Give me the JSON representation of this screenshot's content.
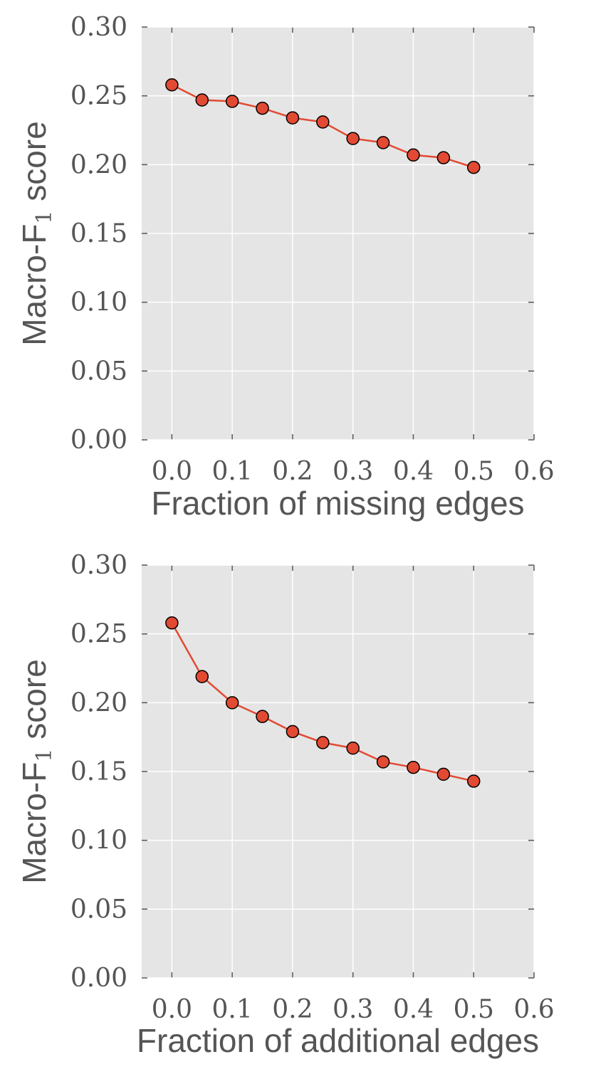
{
  "colors": {
    "series": "#e24a33",
    "plot_background": "#e5e5e5",
    "text": "#555555"
  },
  "chart_data": [
    {
      "type": "line",
      "title": "",
      "xlabel": "Fraction of missing edges",
      "ylabel_main": "Macro-F",
      "ylabel_sub": "1",
      "ylabel_tail": " score",
      "xlim": [
        -0.05,
        0.6
      ],
      "ylim": [
        0.0,
        0.3
      ],
      "xticks": [
        "0.0",
        "0.1",
        "0.2",
        "0.3",
        "0.4",
        "0.5",
        "0.6"
      ],
      "yticks": [
        "0.00",
        "0.05",
        "0.10",
        "0.15",
        "0.20",
        "0.25",
        "0.30"
      ],
      "grid": true,
      "series": [
        {
          "x": [
            0.0,
            0.05,
            0.1,
            0.15,
            0.2,
            0.25,
            0.3,
            0.35,
            0.4,
            0.45,
            0.5
          ],
          "values": [
            0.258,
            0.247,
            0.246,
            0.241,
            0.234,
            0.231,
            0.219,
            0.216,
            0.207,
            0.205,
            0.198
          ]
        }
      ]
    },
    {
      "type": "line",
      "title": "",
      "xlabel": "Fraction of additional edges",
      "ylabel_main": "Macro-F",
      "ylabel_sub": "1",
      "ylabel_tail": " score",
      "xlim": [
        -0.05,
        0.6
      ],
      "ylim": [
        0.0,
        0.3
      ],
      "xticks": [
        "0.0",
        "0.1",
        "0.2",
        "0.3",
        "0.4",
        "0.5",
        "0.6"
      ],
      "yticks": [
        "0.00",
        "0.05",
        "0.10",
        "0.15",
        "0.20",
        "0.25",
        "0.30"
      ],
      "grid": true,
      "series": [
        {
          "x": [
            0.0,
            0.05,
            0.1,
            0.15,
            0.2,
            0.25,
            0.3,
            0.35,
            0.4,
            0.45,
            0.5
          ],
          "values": [
            0.258,
            0.219,
            0.2,
            0.19,
            0.179,
            0.171,
            0.167,
            0.157,
            0.153,
            0.148,
            0.143
          ]
        }
      ]
    }
  ]
}
